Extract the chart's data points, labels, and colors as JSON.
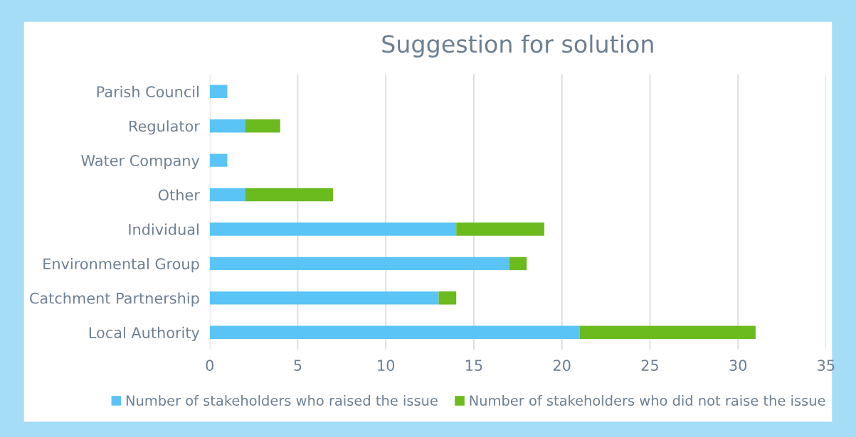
{
  "chart_data": {
    "type": "bar",
    "orientation": "horizontal",
    "stacked": true,
    "title": "Suggestion for solution",
    "categories": [
      "Parish Council",
      "Regulator",
      "Water Company",
      "Other",
      "Individual",
      "Environmental Group",
      "Catchment Partnership",
      "Local Authority"
    ],
    "series": [
      {
        "name": "Number of stakeholders who raised the issue",
        "color": "#5bc4f6",
        "values": [
          1,
          2,
          1,
          2,
          14,
          17,
          13,
          21
        ]
      },
      {
        "name": "Number of stakeholders who did not raise the issue",
        "color": "#6bbb1e",
        "values": [
          0,
          2,
          0,
          5,
          5,
          1,
          1,
          10
        ]
      }
    ],
    "xlim": [
      0,
      35
    ],
    "xticks": [
      0,
      5,
      10,
      15,
      20,
      25,
      30,
      35
    ],
    "grid": "x",
    "legend": "bottom"
  }
}
